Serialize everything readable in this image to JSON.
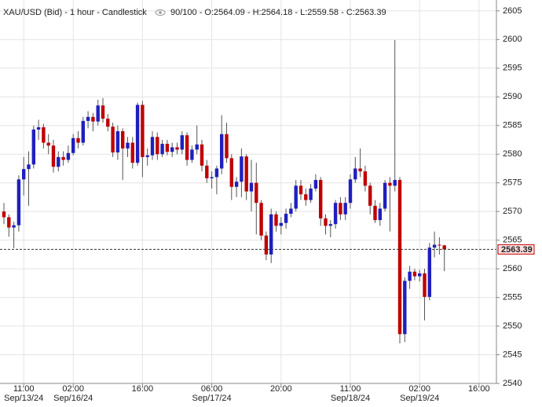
{
  "chart_data": {
    "type": "candlestick",
    "title": "XAU/USD (Bid) - 1 hour - Candlestick",
    "info": "90/100 - O:2564.09 - H:2564.18 - L:2559.58 - C:2563.39",
    "categories": [
      null,
      null,
      null,
      null,
      "11:00",
      null,
      null,
      null,
      null,
      null,
      null,
      null,
      null,
      null,
      "02:00",
      null,
      null,
      null,
      null,
      null,
      null,
      null,
      null,
      null,
      null,
      null,
      null,
      null,
      "16:00",
      null,
      null,
      null,
      null,
      null,
      null,
      null,
      null,
      null,
      null,
      null,
      null,
      null,
      "06:00",
      null,
      null,
      null,
      null,
      null,
      null,
      null,
      null,
      null,
      null,
      null,
      null,
      null,
      "20:00",
      null,
      null,
      null,
      null,
      null,
      null,
      null,
      null,
      null,
      null,
      null,
      null,
      null,
      "11:00",
      null,
      null,
      null,
      null,
      null,
      null,
      null,
      null,
      null,
      null,
      null,
      null,
      null,
      "02:00",
      null,
      null,
      null,
      null,
      null,
      null,
      null,
      null,
      null,
      null,
      null,
      "16:00",
      null,
      null,
      null
    ],
    "dates": [
      null,
      null,
      null,
      null,
      "Sep/13/24",
      null,
      null,
      null,
      null,
      null,
      null,
      null,
      null,
      null,
      "Sep/16/24",
      null,
      null,
      null,
      null,
      null,
      null,
      null,
      null,
      null,
      null,
      null,
      null,
      null,
      null,
      null,
      null,
      null,
      null,
      null,
      null,
      null,
      null,
      null,
      null,
      null,
      null,
      null,
      "Sep/17/24",
      null,
      null,
      null,
      null,
      null,
      null,
      null,
      null,
      null,
      null,
      null,
      null,
      null,
      null,
      null,
      null,
      null,
      null,
      null,
      null,
      null,
      null,
      null,
      null,
      null,
      null,
      null,
      "Sep/18/24",
      null,
      null,
      null,
      null,
      null,
      null,
      null,
      null,
      null,
      null,
      null,
      null,
      null,
      "Sep/19/24",
      null,
      null,
      null,
      null,
      null,
      null,
      null,
      null,
      null,
      null,
      null,
      null,
      null,
      null,
      null
    ],
    "open": [
      2570.0,
      2569.0,
      2567.2,
      2567.6,
      2575.6,
      2577.4,
      2578.2,
      2584.3,
      2584.7,
      2582.0,
      2581.5,
      2577.8,
      2579.5,
      2579.0,
      2580.2,
      2582.8,
      2582.0,
      2585.8,
      2586.5,
      2585.7,
      2588.5,
      2586.2,
      2584.8,
      2580.3,
      2584.0,
      2581.0,
      2582.0,
      2578.5,
      2588.6,
      2579.5,
      2579.8,
      2583.0,
      2580.0,
      2581.8,
      2580.4,
      2581.2,
      2580.8,
      2583.3,
      2579.0,
      2580.8,
      2581.7,
      2578.0,
      2575.8,
      2576.0,
      2577.5,
      2583.5,
      2579.3,
      2574.3,
      2575.2,
      2579.6,
      2573.5,
      2575.0,
      2571.5,
      2565.8,
      2562.5,
      2569.5,
      2567.5,
      2568.0,
      2569.6,
      2570.5,
      2574.5,
      2573.0,
      2572.0,
      2574.0,
      2575.5,
      2568.8,
      2567.5,
      2567.8,
      2571.5,
      2569.5,
      2571.5,
      2575.6,
      2577.5,
      2577.0,
      2574.5,
      2571.0,
      2568.5,
      2570.5,
      2575.0,
      2574.5,
      2575.5,
      2548.6,
      2557.9,
      2559.5,
      2558.7,
      2559.2,
      2555.1,
      2563.7,
      2564.2,
      2564.09,
      null,
      null,
      null,
      null,
      null,
      null,
      null,
      null,
      null,
      null
    ],
    "high": [
      2571.5,
      2569.5,
      2568.2,
      2576.3,
      2579.5,
      2580.5,
      2585.0,
      2586.0,
      2585.3,
      2583.5,
      2582.5,
      2580.5,
      2580.5,
      2581.5,
      2583.5,
      2584.0,
      2586.5,
      2587.5,
      2587.2,
      2589.5,
      2589.8,
      2587.0,
      2585.5,
      2585.0,
      2584.5,
      2583.0,
      2583.0,
      2589.0,
      2589.3,
      2581.0,
      2584.0,
      2583.8,
      2582.5,
      2582.5,
      2582.0,
      2582.0,
      2584.0,
      2583.8,
      2581.5,
      2585.0,
      2582.5,
      2579.0,
      2577.0,
      2578.0,
      2586.8,
      2585.5,
      2580.0,
      2576.0,
      2581.0,
      2580.0,
      2579.0,
      2578.5,
      2572.0,
      2566.5,
      2570.5,
      2570.0,
      2569.0,
      2570.5,
      2571.5,
      2575.5,
      2575.5,
      2574.0,
      2574.8,
      2576.5,
      2576.0,
      2569.5,
      2568.5,
      2572.0,
      2572.5,
      2572.5,
      2576.5,
      2579.5,
      2581.0,
      2578.0,
      2575.0,
      2572.0,
      2571.5,
      2575.5,
      2576.0,
      2599.9,
      2576.0,
      2558.5,
      2560.5,
      2560.0,
      2559.8,
      2560.0,
      2564.5,
      2566.5,
      2565.5,
      2564.18,
      null,
      null,
      null,
      null,
      null,
      null,
      null,
      null,
      null,
      null
    ],
    "low": [
      2567.8,
      2565.6,
      2563.6,
      2566.5,
      2572.8,
      2571.0,
      2577.5,
      2582.5,
      2581.0,
      2580.0,
      2576.8,
      2577.0,
      2578.0,
      2578.5,
      2579.8,
      2581.0,
      2581.5,
      2584.5,
      2584.0,
      2585.0,
      2585.5,
      2584.0,
      2579.5,
      2579.0,
      2575.5,
      2579.5,
      2577.5,
      2578.0,
      2576.0,
      2578.0,
      2579.0,
      2579.0,
      2579.5,
      2579.8,
      2579.5,
      2580.0,
      2580.0,
      2578.0,
      2578.5,
      2580.0,
      2577.0,
      2575.0,
      2574.0,
      2573.0,
      2576.5,
      2578.5,
      2572.0,
      2572.5,
      2572.5,
      2572.0,
      2570.0,
      2566.0,
      2565.0,
      2561.5,
      2561.0,
      2566.5,
      2566.0,
      2567.0,
      2569.0,
      2570.0,
      2572.0,
      2571.0,
      2571.5,
      2573.5,
      2567.5,
      2566.0,
      2565.5,
      2567.0,
      2568.5,
      2568.5,
      2570.5,
      2575.0,
      2576.0,
      2573.5,
      2569.5,
      2568.0,
      2567.5,
      2570.0,
      2566.5,
      2573.5,
      2547.0,
      2547.2,
      2556.5,
      2558.0,
      2557.8,
      2551.0,
      2554.5,
      2562.0,
      2562.5,
      2559.58,
      null,
      null,
      null,
      null,
      null,
      null,
      null,
      null,
      null,
      null
    ],
    "close": [
      2569.0,
      2567.2,
      2567.6,
      2575.6,
      2577.4,
      2578.2,
      2584.3,
      2584.7,
      2582.0,
      2581.5,
      2577.8,
      2579.5,
      2579.0,
      2580.2,
      2582.8,
      2582.0,
      2585.8,
      2586.5,
      2585.7,
      2588.5,
      2586.2,
      2584.8,
      2580.3,
      2584.0,
      2581.0,
      2582.0,
      2578.5,
      2588.6,
      2579.5,
      2579.8,
      2583.0,
      2580.0,
      2581.8,
      2580.4,
      2581.2,
      2580.8,
      2583.3,
      2579.0,
      2580.8,
      2581.7,
      2578.0,
      2575.8,
      2576.0,
      2577.5,
      2583.5,
      2579.3,
      2574.3,
      2575.2,
      2579.6,
      2573.5,
      2575.0,
      2571.5,
      2565.8,
      2562.5,
      2569.5,
      2567.5,
      2568.0,
      2569.6,
      2570.5,
      2574.5,
      2573.0,
      2572.0,
      2574.0,
      2575.5,
      2568.8,
      2567.5,
      2567.8,
      2571.5,
      2569.5,
      2571.5,
      2575.6,
      2577.5,
      2577.0,
      2574.5,
      2571.0,
      2568.5,
      2570.5,
      2575.0,
      2574.5,
      2575.5,
      2548.6,
      2557.9,
      2559.5,
      2558.7,
      2559.2,
      2555.1,
      2563.7,
      2564.2,
      2564.09,
      2563.39,
      null,
      null,
      null,
      null,
      null,
      null,
      null,
      null,
      null,
      null
    ],
    "up_color": "#1f1fbf",
    "down_color": "#c00000",
    "ylim": [
      2540,
      2606.9
    ],
    "yticks": [
      2540,
      2545,
      2550,
      2555,
      2560,
      2565,
      2570,
      2575,
      2580,
      2585,
      2590,
      2595,
      2600,
      2605
    ],
    "grid": true
  }
}
